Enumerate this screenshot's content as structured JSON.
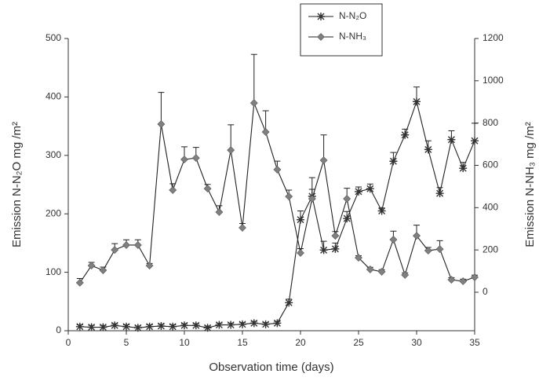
{
  "chart_data": {
    "type": "line",
    "xlabel": "Observation time (days)",
    "ylabel": "Emission N-N₂O mg /m²",
    "y2label": "Emission N-NH₃ mg /m²",
    "x": [
      1,
      2,
      3,
      4,
      5,
      6,
      7,
      8,
      9,
      10,
      11,
      12,
      13,
      14,
      15,
      16,
      17,
      18,
      19,
      20,
      21,
      22,
      23,
      24,
      25,
      26,
      27,
      28,
      29,
      30,
      31,
      32,
      33,
      34,
      35
    ],
    "xlim": [
      0,
      35
    ],
    "xticks": [
      0,
      5,
      10,
      15,
      20,
      25,
      30,
      35
    ],
    "ylim": [
      0,
      500
    ],
    "yticks": [
      0,
      100,
      200,
      300,
      400,
      500
    ],
    "y2lim": [
      -182,
      1200
    ],
    "y2ticks": [
      0,
      200,
      400,
      600,
      800,
      1000,
      1200
    ],
    "legend": "top-center",
    "series": [
      {
        "name": "N-N₂O",
        "color": "#333333",
        "marker": "star",
        "axis": "y",
        "values": [
          7,
          6,
          6,
          9,
          7,
          5,
          7,
          8,
          7,
          9,
          9,
          5,
          10,
          10,
          11,
          13,
          11,
          13,
          48,
          190,
          230,
          138,
          140,
          192,
          238,
          243,
          205,
          290,
          335,
          392,
          310,
          235,
          327,
          278,
          325
        ],
        "errors": [
          3,
          3,
          3,
          3,
          3,
          3,
          3,
          3,
          3,
          3,
          3,
          3,
          3,
          3,
          3,
          3,
          3,
          3,
          6,
          15,
          12,
          15,
          10,
          12,
          8,
          8,
          5,
          15,
          10,
          25,
          15,
          10,
          15,
          10,
          30
        ]
      },
      {
        "name": "N-NH₃",
        "color": "#808080",
        "marker": "diamond",
        "axis": "y2",
        "values": [
          45,
          126,
          104,
          200,
          223,
          223,
          126,
          795,
          483,
          628,
          635,
          490,
          379,
          672,
          305,
          895,
          758,
          580,
          453,
          186,
          442,
          624,
          267,
          442,
          163,
          108,
          97,
          249,
          82,
          267,
          197,
          204,
          59,
          52,
          71
        ],
        "errors": [
          20,
          15,
          15,
          30,
          25,
          25,
          10,
          150,
          30,
          60,
          50,
          20,
          30,
          120,
          20,
          230,
          100,
          40,
          30,
          20,
          100,
          120,
          20,
          50,
          10,
          10,
          10,
          40,
          10,
          50,
          15,
          40,
          10,
          10,
          10
        ]
      }
    ]
  }
}
